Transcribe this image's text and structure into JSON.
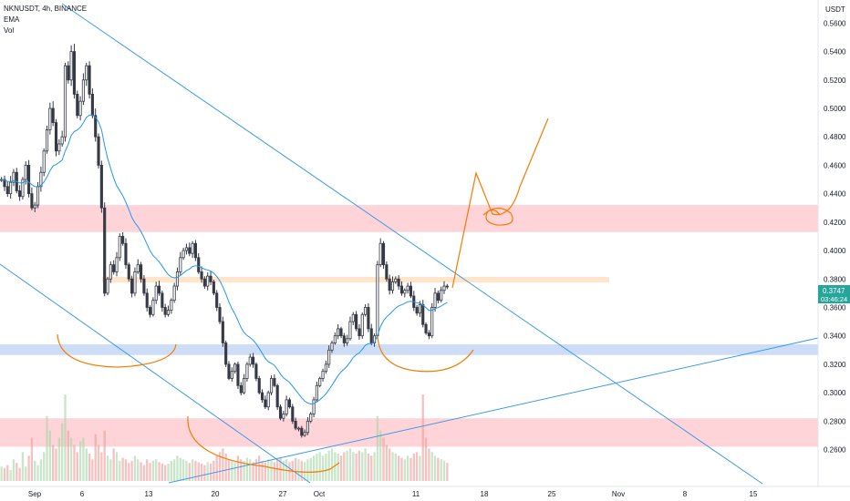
{
  "header": {
    "title": "NKNUSDT, 4h, BINANCE",
    "ema_label": "EMA",
    "vol_label": "Vol"
  },
  "price_axis": {
    "currency": "USDT",
    "ticks": [
      "0.5600",
      "0.5400",
      "0.5200",
      "0.5000",
      "0.4800",
      "0.4600",
      "0.4400",
      "0.4200",
      "0.4000",
      "0.3800",
      "0.3600",
      "0.3400",
      "0.3200",
      "0.3000",
      "0.2800",
      "0.2600"
    ],
    "current_price": "0.3747",
    "countdown": "03:46:24"
  },
  "time_axis": {
    "labels": [
      "Sep",
      "6",
      "13",
      "20",
      "27",
      "Oct",
      "11",
      "18",
      "25",
      "Nov",
      "8",
      "15"
    ]
  },
  "colors": {
    "up": "#ffffff",
    "down": "#363a45",
    "ema": "#2196f3",
    "trendline": "#3d9be9",
    "drawing": "#f57c00",
    "resistance_zone": "#ffcdd2",
    "support_zone": "#c5d7f5",
    "mid_zone": "#ffe0c2",
    "price_tag": "#26a69a"
  },
  "chart_data": {
    "type": "candlestick",
    "symbol": "NKNUSDT",
    "interval": "4h",
    "ylim": [
      0.252,
      0.566
    ],
    "price_path": [
      0.45,
      0.445,
      0.44,
      0.448,
      0.455,
      0.442,
      0.438,
      0.45,
      0.46,
      0.44,
      0.43,
      0.432,
      0.445,
      0.455,
      0.47,
      0.485,
      0.5,
      0.49,
      0.47,
      0.475,
      0.48,
      0.53,
      0.52,
      0.54,
      0.51,
      0.495,
      0.505,
      0.52,
      0.53,
      0.51,
      0.495,
      0.48,
      0.46,
      0.43,
      0.37,
      0.38,
      0.39,
      0.385,
      0.395,
      0.41,
      0.405,
      0.39,
      0.38,
      0.37,
      0.385,
      0.39,
      0.38,
      0.37,
      0.36,
      0.355,
      0.365,
      0.375,
      0.37,
      0.36,
      0.355,
      0.358,
      0.365,
      0.375,
      0.385,
      0.395,
      0.4,
      0.402,
      0.398,
      0.405,
      0.395,
      0.385,
      0.38,
      0.375,
      0.382,
      0.378,
      0.37,
      0.36,
      0.35,
      0.335,
      0.32,
      0.31,
      0.315,
      0.32,
      0.305,
      0.3,
      0.31,
      0.32,
      0.325,
      0.32,
      0.31,
      0.3,
      0.295,
      0.29,
      0.3,
      0.31,
      0.305,
      0.29,
      0.282,
      0.285,
      0.295,
      0.29,
      0.28,
      0.275,
      0.275,
      0.27,
      0.272,
      0.28,
      0.285,
      0.295,
      0.305,
      0.31,
      0.315,
      0.32,
      0.33,
      0.335,
      0.34,
      0.345,
      0.34,
      0.335,
      0.338,
      0.35,
      0.355,
      0.345,
      0.34,
      0.355,
      0.36,
      0.345,
      0.335,
      0.34,
      0.39,
      0.405,
      0.39,
      0.38,
      0.372,
      0.378,
      0.38,
      0.375,
      0.37,
      0.372,
      0.375,
      0.368,
      0.36,
      0.356,
      0.362,
      0.348,
      0.342,
      0.34,
      0.36,
      0.37,
      0.365,
      0.372,
      0.375,
      0.3747
    ],
    "vol_path": [
      20,
      18,
      22,
      15,
      30,
      25,
      18,
      40,
      20,
      35,
      60,
      28,
      22,
      30,
      40,
      90,
      70,
      50,
      45,
      60,
      80,
      120,
      70,
      60,
      50,
      40,
      55,
      60,
      45,
      38,
      30,
      65,
      50,
      40,
      70,
      35,
      30,
      45,
      40,
      28,
      32,
      30,
      25,
      28,
      35,
      30,
      26,
      22,
      30,
      25,
      28,
      30,
      26,
      24,
      22,
      24,
      28,
      30,
      35,
      32,
      30,
      28,
      25,
      30,
      28,
      26,
      24,
      22,
      26,
      24,
      28,
      35,
      40,
      45,
      38,
      30,
      28,
      26,
      35,
      30,
      28,
      32,
      30,
      26,
      30,
      35,
      28,
      26,
      30,
      28,
      26,
      30,
      32,
      28,
      30,
      26,
      28,
      32,
      30,
      28,
      26,
      30,
      32,
      35,
      38,
      40,
      35,
      38,
      42,
      45,
      40,
      38,
      35,
      40,
      42,
      45,
      40,
      38,
      42,
      40,
      45,
      38,
      35,
      40,
      90,
      70,
      60,
      50,
      45,
      40,
      38,
      35,
      32,
      30,
      35,
      32,
      38,
      40,
      35,
      120,
      60,
      45,
      40,
      35,
      32,
      30,
      28,
      25
    ],
    "zones": [
      {
        "type": "resistance",
        "from": 0.413,
        "to": 0.432
      },
      {
        "type": "supply",
        "from": 0.3775,
        "to": 0.3815
      },
      {
        "type": "support",
        "from": 0.3265,
        "to": 0.334
      },
      {
        "type": "demand",
        "from": 0.262,
        "to": 0.282
      }
    ]
  }
}
